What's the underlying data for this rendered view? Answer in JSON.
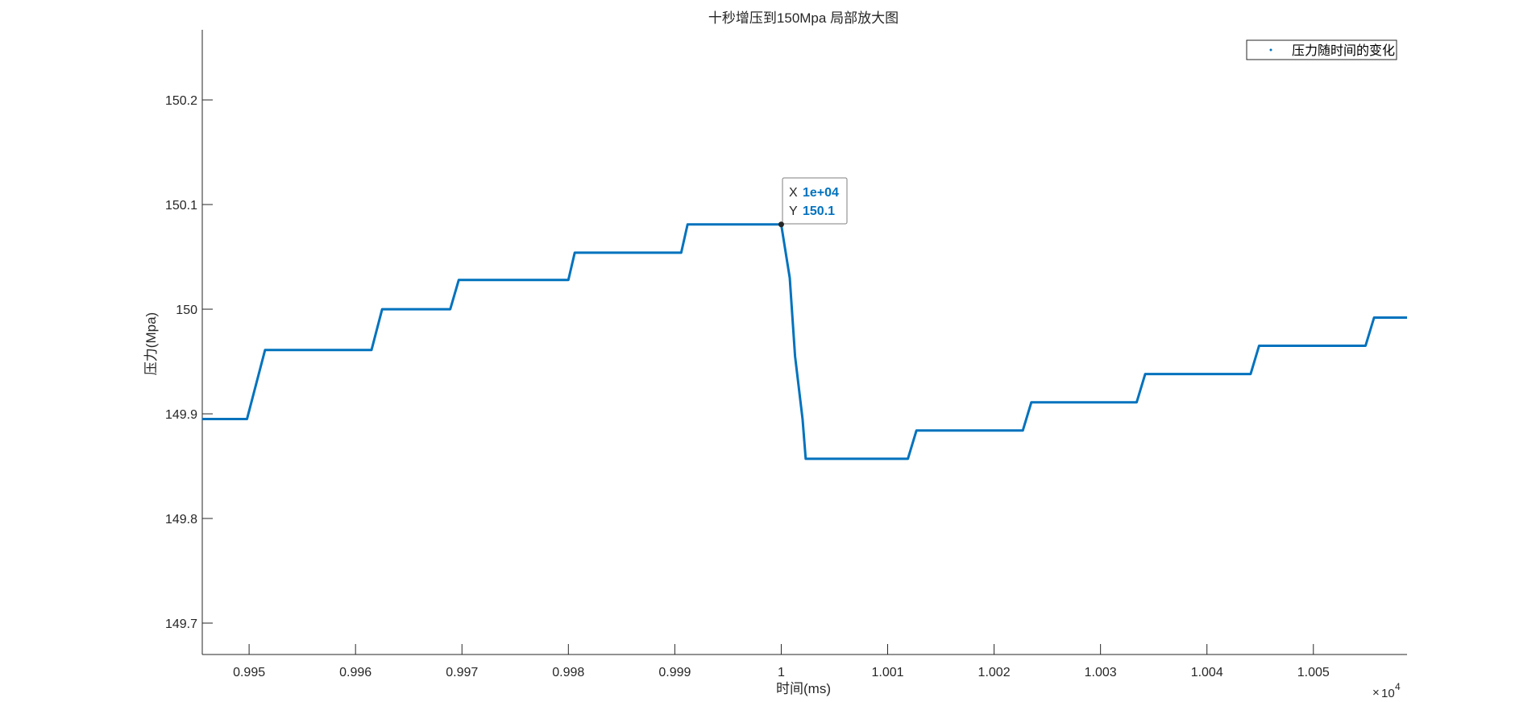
{
  "chart_data": {
    "type": "line",
    "title": "十秒增压到150Mpa 局部放大图",
    "xlabel": "时间(ms)",
    "ylabel": "压力(Mpa)",
    "x_exponent_label": "10",
    "x_exponent_power": "4",
    "xlim": [
      0.99456,
      1.00588
    ],
    "ylim": [
      149.67,
      150.267
    ],
    "x_ticks": [
      0.995,
      0.996,
      0.997,
      0.998,
      0.999,
      1,
      1.001,
      1.002,
      1.003,
      1.004,
      1.005
    ],
    "x_tick_labels": [
      "0.995",
      "0.996",
      "0.997",
      "0.998",
      "0.999",
      "1",
      "1.001",
      "1.002",
      "1.003",
      "1.004",
      "1.005"
    ],
    "y_ticks": [
      149.7,
      149.8,
      149.9,
      150,
      150.1,
      150.2
    ],
    "y_tick_labels": [
      "149.7",
      "149.8",
      "149.9",
      "150",
      "150.1",
      "150.2"
    ],
    "grid": false,
    "legend": {
      "position": "top-right",
      "entries": [
        "压力随时间的变化"
      ]
    },
    "series": [
      {
        "name": "压力随时间的变化",
        "color": "#0072BD",
        "x": [
          0.99456,
          0.99498,
          0.99515,
          0.99615,
          0.99625,
          0.99689,
          0.99697,
          0.998,
          0.99806,
          0.99906,
          0.99912,
          1.0,
          1.00008,
          1.00013,
          1.0002,
          1.00023,
          1.00119,
          1.00127,
          1.00227,
          1.00235,
          1.00334,
          1.00342,
          1.00441,
          1.00449,
          1.00549,
          1.00557,
          1.00588
        ],
        "y": [
          149.895,
          149.895,
          149.961,
          149.961,
          150.0,
          150.0,
          150.028,
          150.028,
          150.054,
          150.054,
          150.081,
          150.081,
          150.03,
          149.955,
          149.895,
          149.857,
          149.857,
          149.884,
          149.884,
          149.911,
          149.911,
          149.938,
          149.938,
          149.965,
          149.965,
          149.992,
          149.992
        ]
      }
    ],
    "data_tip": {
      "x": 1.0,
      "y": 150.081,
      "x_label": "X",
      "x_value": "1e+04",
      "y_label": "Y",
      "y_value": "150.1",
      "value_color": "#0072BD"
    }
  }
}
